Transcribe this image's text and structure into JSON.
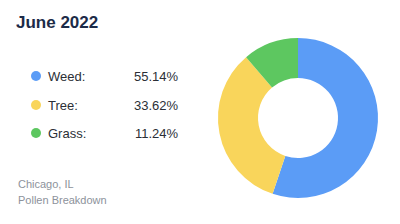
{
  "chart_data": {
    "type": "pie",
    "title": "June 2022",
    "categories": [
      "Weed:",
      "Tree:",
      "Grass:"
    ],
    "values": [
      55.14,
      33.62,
      11.24
    ],
    "value_labels": [
      "55.14%",
      "33.62%",
      "11.24%"
    ],
    "colors": [
      "#5b9cf6",
      "#f9d55b",
      "#5dc760"
    ],
    "annotations": [
      "Chicago, IL",
      "Pollen Breakdown"
    ],
    "data_labels": false,
    "legend": "left"
  }
}
